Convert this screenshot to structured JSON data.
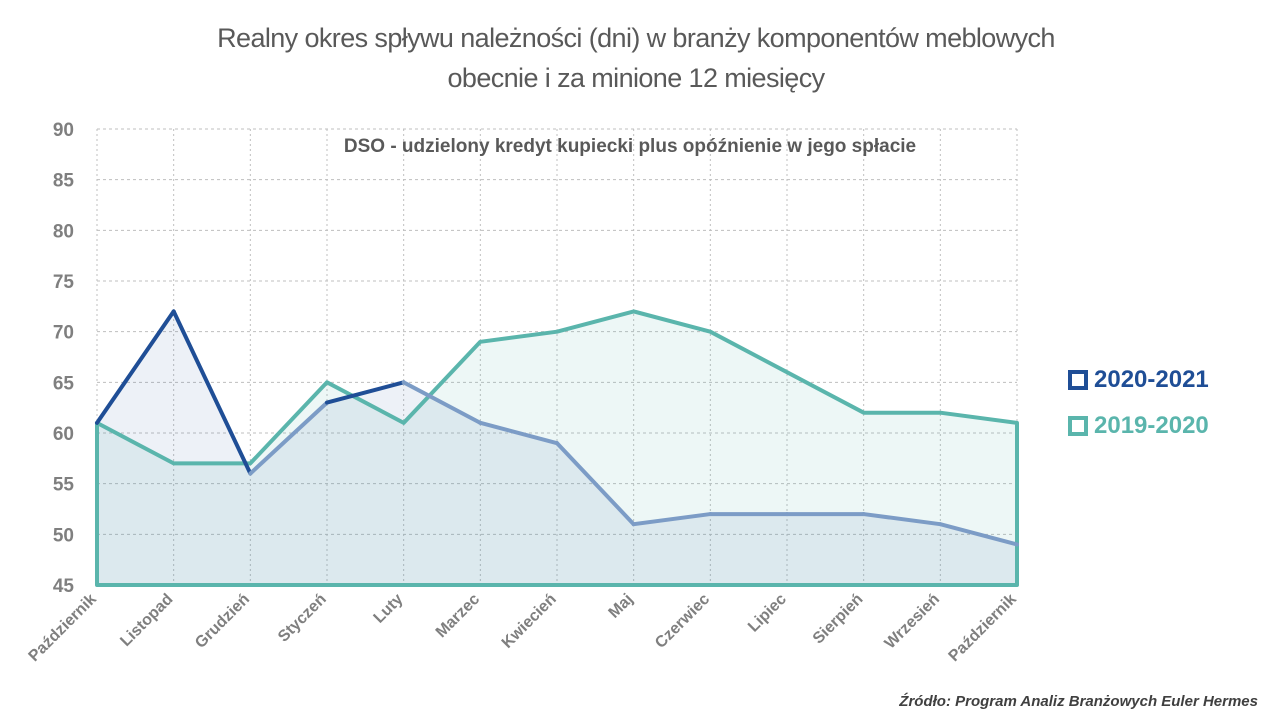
{
  "title_line1": "Realny okres spływu należności (dni) w branży komponentów meblowych",
  "title_line2": "obecnie i za minione 12 miesięcy",
  "source": "Źródło: Program Analiz Branżowych Euler Hermes",
  "colors": {
    "series_2020_2021": "#1F4E96",
    "series_2020_2021_light": "#7C9CC6",
    "series_2019_2020": "#5AB5AC",
    "grid": "#BFBFBF",
    "axis_text": "#7F7F7F"
  },
  "chart_data": {
    "type": "area",
    "annotation": "DSO - udzielony kredyt kupiecki plus opóźnienie w jego spłacie",
    "categories": [
      "Październik",
      "Listopad",
      "Grudzień",
      "Styczeń",
      "Luty",
      "Marzec",
      "Kwiecień",
      "Maj",
      "Czerwiec",
      "Lipiec",
      "Sierpień",
      "Wrzesień",
      "Październik"
    ],
    "ylim": [
      45,
      90
    ],
    "yticks": [
      45,
      50,
      55,
      60,
      65,
      70,
      75,
      80,
      85,
      90
    ],
    "grid": "horizontal dashed",
    "legend_position": "right",
    "series": [
      {
        "name": "2020-2021",
        "values": [
          61,
          72,
          56,
          63,
          65,
          61,
          59,
          51,
          52,
          52,
          52,
          51,
          49
        ]
      },
      {
        "name": "2019-2020",
        "values": [
          61,
          57,
          57,
          65,
          61,
          69,
          70,
          72,
          70,
          66,
          62,
          62,
          61
        ]
      }
    ]
  }
}
